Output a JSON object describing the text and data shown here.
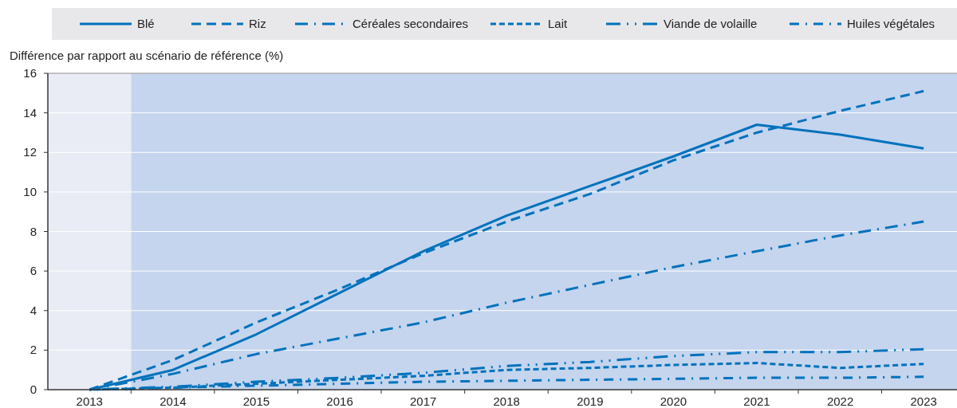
{
  "chart_data": {
    "type": "line",
    "ylabel": "Différence par rapport au scénario de référence (%)",
    "x": [
      2013,
      2014,
      2015,
      2016,
      2017,
      2018,
      2019,
      2020,
      2021,
      2022,
      2023
    ],
    "xlim": [
      2012.5,
      2023.4
    ],
    "xticks": [
      2013,
      2014,
      2015,
      2016,
      2017,
      2018,
      2019,
      2020,
      2021,
      2022,
      2023
    ],
    "ylim": [
      0,
      16
    ],
    "yticks": [
      0,
      2,
      4,
      6,
      8,
      10,
      12,
      14,
      16
    ],
    "grid": "y",
    "legend": "top",
    "bands": [
      {
        "axis": "x",
        "from": 2013.5,
        "to": 2023.4,
        "color": "#c5d5ee"
      }
    ],
    "series": [
      {
        "name": "Blé",
        "color": "#0072bc",
        "line_style": "solid",
        "values": [
          0,
          1.0,
          2.8,
          4.9,
          7.0,
          8.8,
          10.3,
          11.8,
          13.4,
          12.9,
          12.2
        ]
      },
      {
        "name": "Riz",
        "color": "#0072bc",
        "line_style": "dashed",
        "values": [
          0,
          1.5,
          3.4,
          5.1,
          6.9,
          8.5,
          9.9,
          11.6,
          13.0,
          14.1,
          15.1
        ]
      },
      {
        "name": "Céréales secondaires",
        "color": "#0072bc",
        "line_style": "dashdot",
        "values": [
          0,
          0.8,
          1.8,
          2.6,
          3.4,
          4.4,
          5.3,
          6.2,
          7.0,
          7.8,
          8.5
        ]
      },
      {
        "name": "Lait",
        "color": "#0072bc",
        "line_style": "shortdash",
        "values": [
          0,
          0.1,
          0.3,
          0.5,
          0.7,
          1.0,
          1.1,
          1.25,
          1.35,
          1.1,
          1.3
        ]
      },
      {
        "name": "Viande de volaille",
        "color": "#0072bc",
        "line_style": "dashdotdot",
        "values": [
          0,
          0.15,
          0.4,
          0.6,
          0.85,
          1.2,
          1.4,
          1.7,
          1.9,
          1.9,
          2.05
        ]
      },
      {
        "name": "Huiles végétales",
        "color": "#0072bc",
        "line_style": "dashdot2",
        "values": [
          0,
          0.1,
          0.2,
          0.3,
          0.4,
          0.45,
          0.5,
          0.55,
          0.6,
          0.6,
          0.65
        ]
      }
    ]
  }
}
